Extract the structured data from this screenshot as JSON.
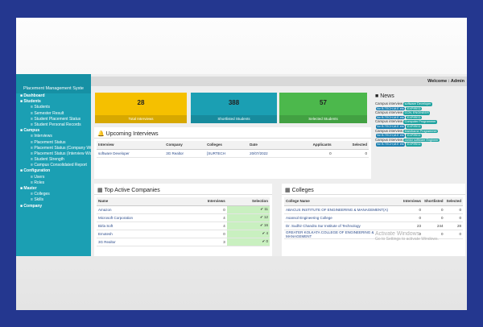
{
  "sidebar": {
    "title": "Placement Management Syste",
    "menu": [
      {
        "label": "Dashboard",
        "level": 0
      },
      {
        "label": "Students",
        "level": 0
      },
      {
        "label": "Students",
        "level": 1
      },
      {
        "label": "Semester Result",
        "level": 1
      },
      {
        "label": "Student Placement Status",
        "level": 1
      },
      {
        "label": "Student Personal Records",
        "level": 1
      },
      {
        "label": "Campus",
        "level": 0
      },
      {
        "label": "Interviews",
        "level": 1
      },
      {
        "label": "Placement Status",
        "level": 1
      },
      {
        "label": "Placement Status (Company Wise)",
        "level": 1
      },
      {
        "label": "Placement Status (Interview Wise)",
        "level": 1
      },
      {
        "label": "Student Strength",
        "level": 1
      },
      {
        "label": "Campus Consolidated Report",
        "level": 1
      },
      {
        "label": "Configuration",
        "level": 0
      },
      {
        "label": "Users",
        "level": 1
      },
      {
        "label": "Roles",
        "level": 1
      },
      {
        "label": "Master",
        "level": 0
      },
      {
        "label": "Colleges",
        "level": 1
      },
      {
        "label": "Skills",
        "level": 1
      },
      {
        "label": "Company",
        "level": 0
      }
    ]
  },
  "header": {
    "welcome": "Welcome : Admin"
  },
  "cards": [
    {
      "value": "28",
      "label": "Total Interviews"
    },
    {
      "value": "388",
      "label": "Shortlisted Students"
    },
    {
      "value": "57",
      "label": "Selected Students"
    }
  ],
  "news": {
    "title": "News",
    "items": [
      {
        "text": "Campus interview",
        "tags": [
          "software Developer",
          "for B.TECH,M.E etc",
          "EXPIRED"
        ]
      },
      {
        "text": "Campus interview",
        "tags": [
          "CCN, ENGINEER",
          "for B.TECH,M.E etc",
          "EXPIRED"
        ]
      },
      {
        "text": "Campus interview",
        "tags": [
          "Computer Programmer",
          "for B.TECH,M.E etc",
          "EXPIRED"
        ]
      },
      {
        "text": "Campus interview",
        "tags": [
          "Mainframe Programmer",
          "for B.TECH,M.E etc",
          "EXPIRED"
        ]
      },
      {
        "text": "Campus interview",
        "tags": [
          "Junior software Engineer",
          "for B.TECH,M.E etc",
          "EXPIRED"
        ]
      }
    ]
  },
  "upcoming": {
    "title": "Upcoming Interviews",
    "headers": [
      "Interview",
      "Company",
      "Colleges",
      "Date",
      "Applicants",
      "Selected"
    ],
    "rows": [
      [
        "software Developer",
        "3G Realtor",
        "[SURTECH",
        "20/07/2022",
        "0",
        "0"
      ]
    ]
  },
  "companies": {
    "title": "Top Active Companies",
    "headers": [
      "Name",
      "Interviews",
      "Selection"
    ],
    "rows": [
      [
        "Amazon",
        "0",
        "11"
      ],
      [
        "Microsoft Corporation",
        "4",
        "12"
      ],
      [
        "Birla Soft",
        "4",
        "16"
      ],
      [
        "Emotesh",
        "0",
        "4"
      ],
      [
        "3G Realtor",
        "3",
        "0"
      ]
    ]
  },
  "colleges": {
    "title": "Colleges",
    "headers": [
      "College Name",
      "Interviews",
      "Shortlisted",
      "Selected"
    ],
    "rows": [
      [
        "ABACUS INSTITUTE OF ENGINEERING & MANAGEMENT(A)",
        "0",
        "0",
        "0"
      ],
      [
        "Asansol Engineering College",
        "0",
        "0",
        "0"
      ],
      [
        "Dr. Sudhir Chandra Sur Institute of Technology",
        "23",
        "244",
        "28"
      ],
      [
        "GREATER KOLKATA COLLEGE OF ENGINEERING & MANAGEMENT",
        "0",
        "0",
        "0"
      ]
    ]
  },
  "watermark": {
    "title": "Activate Windows",
    "text": "Go to Settings to activate Windows."
  }
}
